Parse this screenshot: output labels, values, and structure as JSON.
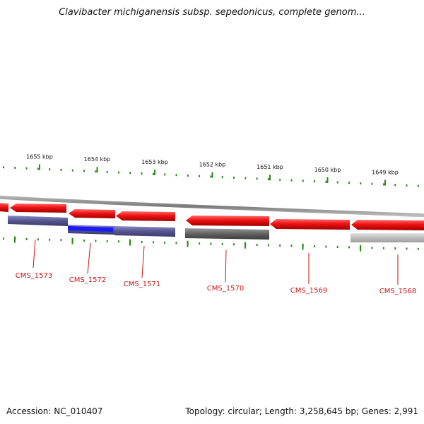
{
  "title": "Clavibacter michiganensis subsp. sepedonicus, complete genom...",
  "footer": {
    "accession": "Accession: NC_010407",
    "summary": "Topology: circular; Length: 3,258,645 bp; Genes: 2,991"
  },
  "ruler": {
    "ticks": [
      {
        "label": "1655 kbp",
        "kbp": 1655
      },
      {
        "label": "1654 kbp",
        "kbp": 1654
      },
      {
        "label": "1653 kbp",
        "kbp": 1653
      },
      {
        "label": "1652 kbp",
        "kbp": 1652
      },
      {
        "label": "1651 kbp",
        "kbp": 1651
      },
      {
        "label": "1650 kbp",
        "kbp": 1650
      },
      {
        "label": "1649 kbp",
        "kbp": 1649
      }
    ]
  },
  "genes": [
    {
      "label": "CMS_1573"
    },
    {
      "label": "CMS_1572"
    },
    {
      "label": "CMS_1571"
    },
    {
      "label": "CMS_1570"
    },
    {
      "label": "CMS_1569"
    },
    {
      "label": "CMS_1568"
    }
  ],
  "colors": {
    "forward_gene": "#ee1111",
    "reverse_gene": "#5a5a96",
    "highlight": "#1a1aff",
    "pseudo_gene": "#666666",
    "light_gene": "#bdbdbd",
    "ruler": "#2a8a1a",
    "label": "#cc1111",
    "backbone": "#888888"
  }
}
